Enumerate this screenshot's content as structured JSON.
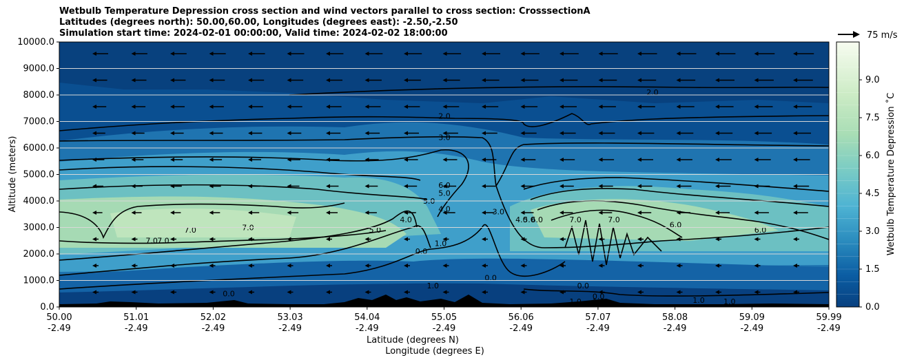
{
  "title_lines": [
    "Wetbulb Temperature Depression cross section and wind vectors parallel to cross section: CrosssectionA",
    "Latitudes (degrees north): 50.00,60.00, Longitudes (degrees east): -2.50,-2.50",
    "Simulation start time: 2024-02-01 00:00:00, Valid time: 2024-02-02 18:00:00"
  ],
  "wind_key": {
    "label": "75 m/s",
    "speed_ms": 75,
    "direction": "right"
  },
  "colors": {
    "deep": "#08407f",
    "mid": "#1f78b5",
    "light_blue": "#4eb3d3",
    "teal": "#7bccc4",
    "green": "#a8ddb5",
    "pale": "#ccebc5",
    "white": "#f7fcf0"
  },
  "chart_data": {
    "type": "contourf",
    "variable": "Wetbulb Temperature Depression",
    "xlabel": "Latitude (degrees N)",
    "xlabel2": "Longitude (degrees E)",
    "ylabel": "Altitude (meters)",
    "x_ticks": [
      {
        "lat": "50.00",
        "lon": "-2.49"
      },
      {
        "lat": "51.01",
        "lon": "-2.49"
      },
      {
        "lat": "52.02",
        "lon": "-2.49"
      },
      {
        "lat": "53.03",
        "lon": "-2.49"
      },
      {
        "lat": "54.04",
        "lon": "-2.49"
      },
      {
        "lat": "55.05",
        "lon": "-2.49"
      },
      {
        "lat": "56.06",
        "lon": "-2.49"
      },
      {
        "lat": "57.07",
        "lon": "-2.49"
      },
      {
        "lat": "58.08",
        "lon": "-2.49"
      },
      {
        "lat": "59.09",
        "lon": "-2.49"
      },
      {
        "lat": "59.99",
        "lon": "-2.49"
      }
    ],
    "xlim": [
      50.0,
      59.99
    ],
    "ylim": [
      0,
      10000
    ],
    "y_ticks": [
      "0.0",
      "1000.0",
      "2000.0",
      "3000.0",
      "4000.0",
      "5000.0",
      "6000.0",
      "7000.0",
      "8000.0",
      "9000.0",
      "10000.0"
    ],
    "grid": "horizontal",
    "colorbar": {
      "label": "Wetbulb Temperature Depression $^\\circ$C",
      "label_text": "Wetbulb Temperature Depression ˚C",
      "range": [
        0,
        10.5
      ],
      "ticks": [
        "0.0",
        "1.5",
        "3.0",
        "4.5",
        "6.0",
        "7.5",
        "9.0"
      ],
      "levels": 21,
      "colormap": "GnBu"
    },
    "contour_labels": [
      {
        "text": "2.0",
        "lat": 55.0,
        "alt": 7100
      },
      {
        "text": "3.0",
        "lat": 55.0,
        "alt": 6300
      },
      {
        "text": "2.0",
        "lat": 57.7,
        "alt": 8000
      },
      {
        "text": "7.0",
        "lat": 51.7,
        "alt": 2800
      },
      {
        "text": "7.0",
        "lat": 51.2,
        "alt": 2400
      },
      {
        "text": "7.0",
        "lat": 51.35,
        "alt": 2400
      },
      {
        "text": "7.0",
        "lat": 52.45,
        "alt": 2900
      },
      {
        "text": "5.0",
        "lat": 54.1,
        "alt": 2800
      },
      {
        "text": "4.0",
        "lat": 54.5,
        "alt": 3200
      },
      {
        "text": "5.0",
        "lat": 54.8,
        "alt": 3900
      },
      {
        "text": "6.0",
        "lat": 55.0,
        "alt": 4500
      },
      {
        "text": "5.0",
        "lat": 55.0,
        "alt": 4200
      },
      {
        "text": "4.0",
        "lat": 55.0,
        "alt": 3600
      },
      {
        "text": "1.0",
        "lat": 54.95,
        "alt": 2300
      },
      {
        "text": "0.0",
        "lat": 54.7,
        "alt": 2000
      },
      {
        "text": "3.0",
        "lat": 55.7,
        "alt": 3500
      },
      {
        "text": "4.0",
        "lat": 56.0,
        "alt": 3200
      },
      {
        "text": "5.0",
        "lat": 56.1,
        "alt": 3200
      },
      {
        "text": "6.0",
        "lat": 56.2,
        "alt": 3200
      },
      {
        "text": "7.0",
        "lat": 56.7,
        "alt": 3200
      },
      {
        "text": "7.0",
        "lat": 57.2,
        "alt": 3200
      },
      {
        "text": "6.0",
        "lat": 58.0,
        "alt": 3000
      },
      {
        "text": "6.0",
        "lat": 59.1,
        "alt": 2800
      },
      {
        "text": "0.0",
        "lat": 55.6,
        "alt": 1000
      },
      {
        "text": "0.0",
        "lat": 56.8,
        "alt": 700
      },
      {
        "text": "0.0",
        "lat": 52.2,
        "alt": 400
      },
      {
        "text": "1.0",
        "lat": 56.7,
        "alt": 100
      },
      {
        "text": "1.0",
        "lat": 57.0,
        "alt": 100
      },
      {
        "text": "0.0",
        "lat": 57.0,
        "alt": 300
      },
      {
        "text": "1.0",
        "lat": 58.3,
        "alt": 150
      },
      {
        "text": "1.0",
        "lat": 58.7,
        "alt": 100
      },
      {
        "text": "1.0",
        "lat": 54.85,
        "alt": 700
      }
    ],
    "wind_vectors": "mostly easterly (pointing toward lower latitude), strongest 6000–10000 m"
  }
}
